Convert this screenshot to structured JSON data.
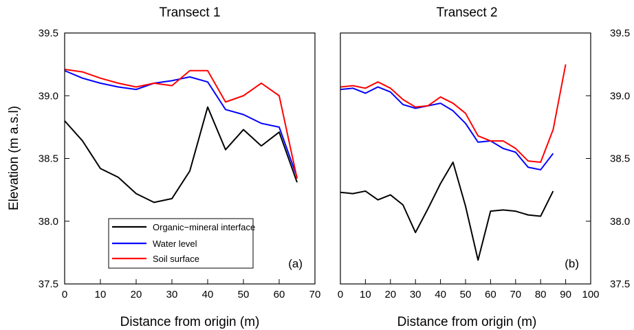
{
  "chart_data": [
    {
      "type": "line",
      "title": "Transect 1",
      "xlabel": "Distance from origin (m)",
      "ylabel": "Elevation (m a.s.l)",
      "xlim": [
        0,
        70
      ],
      "ylim": [
        37.5,
        39.5
      ],
      "xticks": [
        0,
        10,
        20,
        30,
        40,
        50,
        60,
        70
      ],
      "yticks": [
        37.5,
        38.0,
        38.5,
        39.0,
        39.5
      ],
      "xtick_labels": [
        "0",
        "10",
        "20",
        "30",
        "40",
        "50",
        "60",
        "70"
      ],
      "ytick_labels": [
        "37.5",
        "38.0",
        "38.5",
        "39.0",
        "39.5"
      ],
      "ytick_side": "left",
      "panel_label": "(a)",
      "grid": false,
      "legend_position": "bottom-center",
      "legend_entries": [
        "Organic−mineral interface",
        "Water level",
        "Soil surface"
      ],
      "series": [
        {
          "name": "Organic−mineral interface",
          "color": "#000000",
          "x": [
            0,
            5,
            10,
            15,
            20,
            25,
            30,
            35,
            40,
            45,
            50,
            55,
            60,
            65
          ],
          "values": [
            38.8,
            38.64,
            38.42,
            38.35,
            38.22,
            38.15,
            38.18,
            38.4,
            38.91,
            38.57,
            38.73,
            38.6,
            38.71,
            38.31
          ]
        },
        {
          "name": "Water level",
          "color": "#0000ff",
          "x": [
            0,
            5,
            10,
            15,
            20,
            25,
            30,
            35,
            40,
            45,
            50,
            55,
            60,
            65
          ],
          "values": [
            39.2,
            39.14,
            39.1,
            39.07,
            39.05,
            39.1,
            39.12,
            39.15,
            39.11,
            38.89,
            38.85,
            38.78,
            38.75,
            38.35
          ]
        },
        {
          "name": "Soil surface",
          "color": "#ff0000",
          "x": [
            0,
            5,
            10,
            15,
            20,
            25,
            30,
            35,
            40,
            45,
            50,
            55,
            60,
            65
          ],
          "values": [
            39.21,
            39.19,
            39.14,
            39.1,
            39.07,
            39.1,
            39.08,
            39.2,
            39.2,
            38.95,
            39.0,
            39.1,
            39.0,
            38.34
          ]
        }
      ]
    },
    {
      "type": "line",
      "title": "Transect 2",
      "xlabel": "Distance from origin (m)",
      "ylabel": "",
      "xlim": [
        0,
        100
      ],
      "ylim": [
        37.5,
        39.5
      ],
      "xticks": [
        0,
        10,
        20,
        30,
        40,
        50,
        60,
        70,
        80,
        90,
        100
      ],
      "yticks": [
        37.5,
        38.0,
        38.5,
        39.0,
        39.5
      ],
      "xtick_labels": [
        "0",
        "10",
        "20",
        "30",
        "40",
        "50",
        "60",
        "70",
        "80",
        "90",
        "100"
      ],
      "ytick_labels": [
        "37.5",
        "38.0",
        "38.5",
        "39.0",
        "39.5"
      ],
      "ytick_side": "right",
      "panel_label": "(b)",
      "grid": false,
      "series": [
        {
          "name": "Organic−mineral interface",
          "color": "#000000",
          "x": [
            0,
            5,
            10,
            15,
            20,
            25,
            30,
            35,
            40,
            45,
            50,
            55,
            60,
            65,
            70,
            75,
            80,
            85
          ],
          "values": [
            38.23,
            38.22,
            38.24,
            38.17,
            38.21,
            38.13,
            37.91,
            38.1,
            38.3,
            38.47,
            38.12,
            37.69,
            38.08,
            38.09,
            38.08,
            38.05,
            38.04,
            38.24
          ]
        },
        {
          "name": "Water level",
          "color": "#0000ff",
          "x": [
            0,
            5,
            10,
            15,
            20,
            25,
            30,
            35,
            40,
            45,
            50,
            55,
            60,
            65,
            70,
            75,
            80,
            85
          ],
          "values": [
            39.05,
            39.06,
            39.02,
            39.07,
            39.03,
            38.93,
            38.9,
            38.92,
            38.94,
            38.88,
            38.78,
            38.63,
            38.64,
            38.58,
            38.55,
            38.43,
            38.41,
            38.54
          ]
        },
        {
          "name": "Soil surface",
          "color": "#ff0000",
          "x": [
            0,
            5,
            10,
            15,
            20,
            25,
            30,
            35,
            40,
            45,
            50,
            55,
            60,
            65,
            70,
            75,
            80,
            85,
            90
          ],
          "values": [
            39.07,
            39.08,
            39.06,
            39.11,
            39.06,
            38.97,
            38.91,
            38.92,
            38.99,
            38.94,
            38.86,
            38.68,
            38.64,
            38.64,
            38.58,
            38.48,
            38.47,
            38.73,
            39.25
          ]
        }
      ]
    }
  ]
}
